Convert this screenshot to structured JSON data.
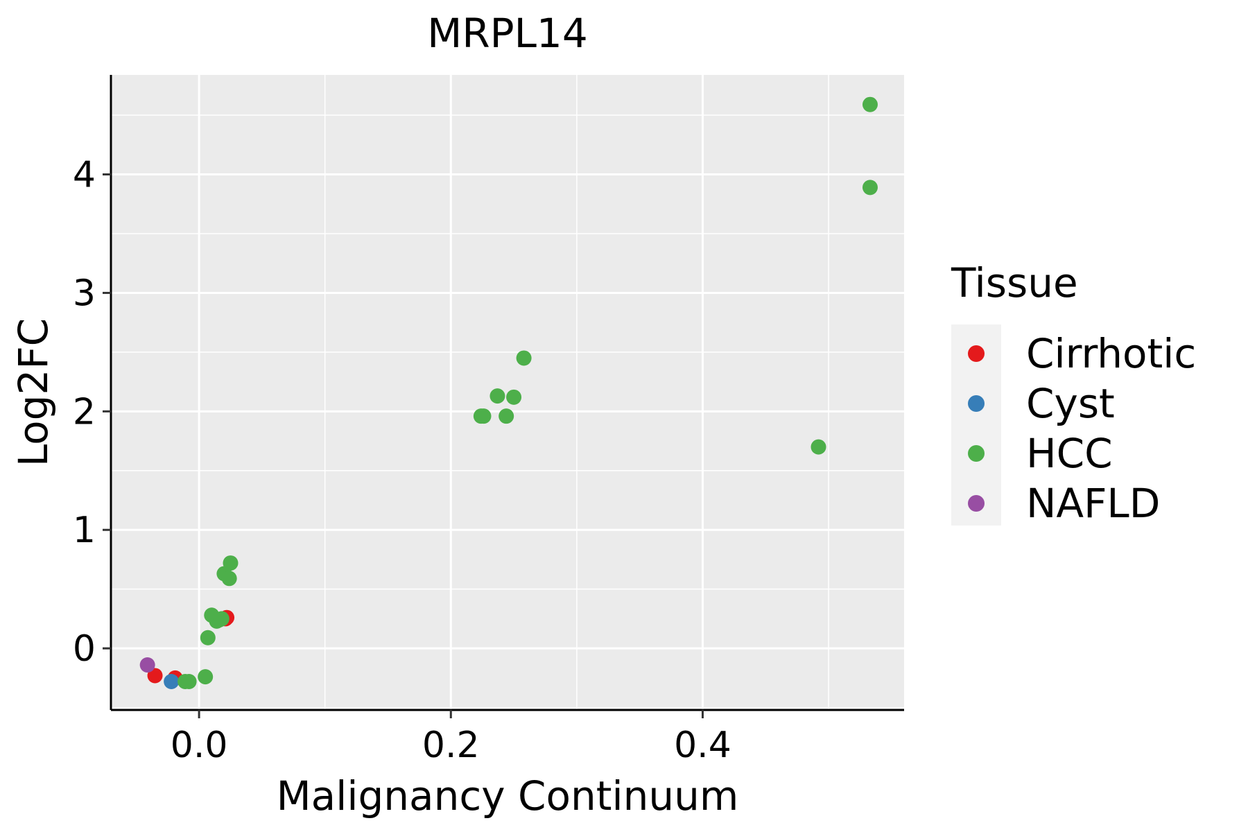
{
  "chart_data": {
    "type": "scatter",
    "title": "MRPL14",
    "xlabel": "Malignancy Continuum",
    "ylabel": "Log2FC",
    "xlim": [
      -0.07,
      0.56
    ],
    "ylim": [
      -0.52,
      4.84
    ],
    "x_ticks": [
      0.0,
      0.2,
      0.4
    ],
    "x_tick_labels": [
      "0.0",
      "0.2",
      "0.4"
    ],
    "y_ticks": [
      0,
      1,
      2,
      3,
      4
    ],
    "y_tick_labels": [
      "0",
      "1",
      "2",
      "3",
      "4"
    ],
    "grid": true,
    "legend": {
      "title": "Tissue",
      "position": "right",
      "entries": [
        {
          "name": "Cirrhotic",
          "color": "#E41A1C"
        },
        {
          "name": "Cyst",
          "color": "#377EB8"
        },
        {
          "name": "HCC",
          "color": "#4DAF4A"
        },
        {
          "name": "NAFLD",
          "color": "#984EA3"
        }
      ]
    },
    "series": [
      {
        "name": "Cirrhotic",
        "color": "#E41A1C",
        "points": [
          {
            "x": -0.035,
            "y": -0.23
          },
          {
            "x": -0.019,
            "y": -0.25
          },
          {
            "x": 0.021,
            "y": 0.25
          },
          {
            "x": 0.022,
            "y": 0.26
          }
        ]
      },
      {
        "name": "Cyst",
        "color": "#377EB8",
        "points": [
          {
            "x": -0.022,
            "y": -0.28
          }
        ]
      },
      {
        "name": "HCC",
        "color": "#4DAF4A",
        "points": [
          {
            "x": -0.011,
            "y": -0.28
          },
          {
            "x": -0.008,
            "y": -0.28
          },
          {
            "x": 0.005,
            "y": -0.24
          },
          {
            "x": 0.007,
            "y": 0.09
          },
          {
            "x": 0.01,
            "y": 0.28
          },
          {
            "x": 0.014,
            "y": 0.23
          },
          {
            "x": 0.016,
            "y": 0.24
          },
          {
            "x": 0.018,
            "y": 0.25
          },
          {
            "x": 0.02,
            "y": 0.63
          },
          {
            "x": 0.024,
            "y": 0.59
          },
          {
            "x": 0.025,
            "y": 0.72
          },
          {
            "x": 0.224,
            "y": 1.96
          },
          {
            "x": 0.226,
            "y": 1.96
          },
          {
            "x": 0.237,
            "y": 2.13
          },
          {
            "x": 0.244,
            "y": 1.96
          },
          {
            "x": 0.25,
            "y": 2.12
          },
          {
            "x": 0.258,
            "y": 2.45
          },
          {
            "x": 0.492,
            "y": 1.7
          },
          {
            "x": 0.533,
            "y": 4.59
          },
          {
            "x": 0.533,
            "y": 3.89
          }
        ]
      },
      {
        "name": "NAFLD",
        "color": "#984EA3",
        "points": [
          {
            "x": -0.041,
            "y": -0.14
          }
        ]
      }
    ]
  }
}
